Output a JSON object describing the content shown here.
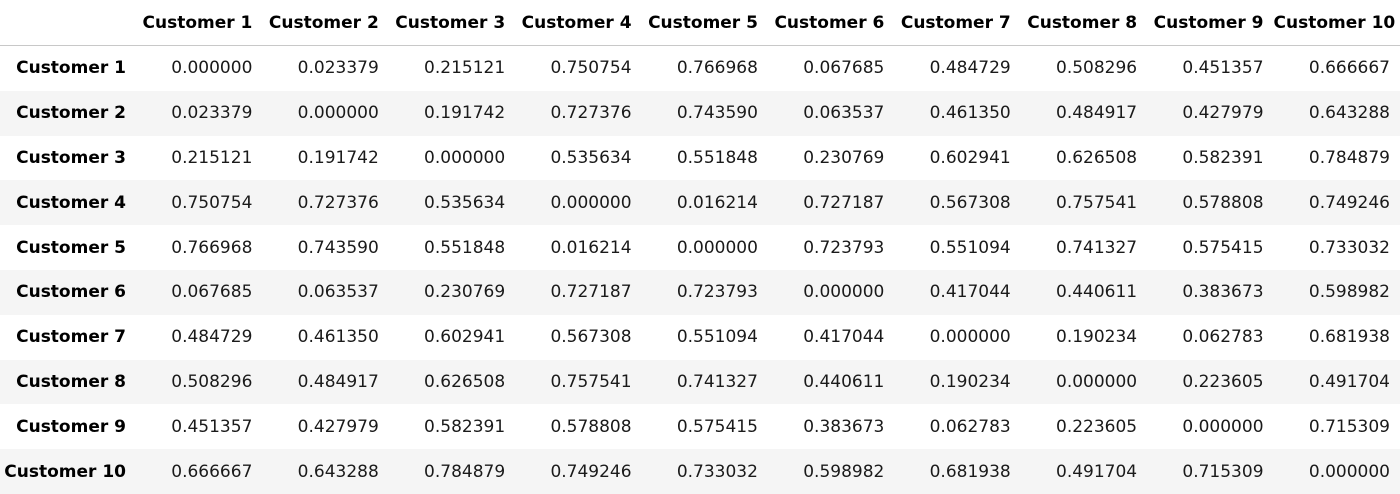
{
  "table": {
    "corner_label": "",
    "columns": [
      "Customer 1",
      "Customer 2",
      "Customer 3",
      "Customer 4",
      "Customer 5",
      "Customer 6",
      "Customer 7",
      "Customer 8",
      "Customer 9",
      "Customer 10"
    ],
    "rows": [
      {
        "label": "Customer 1",
        "cells": [
          "0.000000",
          "0.023379",
          "0.215121",
          "0.750754",
          "0.766968",
          "0.067685",
          "0.484729",
          "0.508296",
          "0.451357",
          "0.666667"
        ]
      },
      {
        "label": "Customer 2",
        "cells": [
          "0.023379",
          "0.000000",
          "0.191742",
          "0.727376",
          "0.743590",
          "0.063537",
          "0.461350",
          "0.484917",
          "0.427979",
          "0.643288"
        ]
      },
      {
        "label": "Customer 3",
        "cells": [
          "0.215121",
          "0.191742",
          "0.000000",
          "0.535634",
          "0.551848",
          "0.230769",
          "0.602941",
          "0.626508",
          "0.582391",
          "0.784879"
        ]
      },
      {
        "label": "Customer 4",
        "cells": [
          "0.750754",
          "0.727376",
          "0.535634",
          "0.000000",
          "0.016214",
          "0.727187",
          "0.567308",
          "0.757541",
          "0.578808",
          "0.749246"
        ]
      },
      {
        "label": "Customer 5",
        "cells": [
          "0.766968",
          "0.743590",
          "0.551848",
          "0.016214",
          "0.000000",
          "0.723793",
          "0.551094",
          "0.741327",
          "0.575415",
          "0.733032"
        ]
      },
      {
        "label": "Customer 6",
        "cells": [
          "0.067685",
          "0.063537",
          "0.230769",
          "0.727187",
          "0.723793",
          "0.000000",
          "0.417044",
          "0.440611",
          "0.383673",
          "0.598982"
        ]
      },
      {
        "label": "Customer 7",
        "cells": [
          "0.484729",
          "0.461350",
          "0.602941",
          "0.567308",
          "0.551094",
          "0.417044",
          "0.000000",
          "0.190234",
          "0.062783",
          "0.681938"
        ]
      },
      {
        "label": "Customer 8",
        "cells": [
          "0.508296",
          "0.484917",
          "0.626508",
          "0.757541",
          "0.741327",
          "0.440611",
          "0.190234",
          "0.000000",
          "0.223605",
          "0.491704"
        ]
      },
      {
        "label": "Customer 9",
        "cells": [
          "0.451357",
          "0.427979",
          "0.582391",
          "0.578808",
          "0.575415",
          "0.383673",
          "0.062783",
          "0.223605",
          "0.000000",
          "0.715309"
        ]
      },
      {
        "label": "Customer 10",
        "cells": [
          "0.666667",
          "0.643288",
          "0.784879",
          "0.749246",
          "0.733032",
          "0.598982",
          "0.681938",
          "0.491704",
          "0.715309",
          "0.000000"
        ]
      }
    ]
  },
  "colors": {
    "header_border": "#c8c8c8",
    "stripe": "#f5f5f5",
    "background": "#ffffff"
  }
}
